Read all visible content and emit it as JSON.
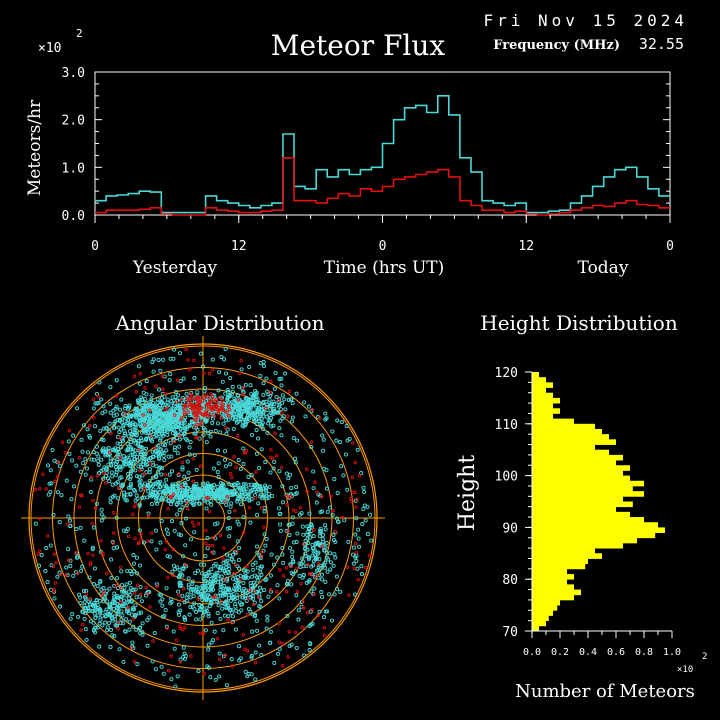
{
  "header": {
    "date": "Fri Nov 15 2024",
    "title": "Meteor Flux",
    "frequency_label": "Frequency (MHz)",
    "frequency_value": "32.55",
    "multiplier": "×10",
    "multiplier_exp": "2"
  },
  "colors": {
    "background": "#000000",
    "cyan_series": "#4ad8d8",
    "red_series": "#e01010",
    "yellow_bars": "#ffff00",
    "rings": "#ff9a00",
    "axes": "#ffffff"
  },
  "chart_data": [
    {
      "type": "line",
      "title": "Meteor Flux",
      "ylabel": "Meteors/hr",
      "xlabel": "Time (hrs UT)",
      "x_group_labels": [
        "Yesterday",
        "Today"
      ],
      "xticks": [
        "0",
        "12",
        "0",
        "12",
        "0"
      ],
      "yticks": [
        "0.0",
        "1.0",
        "2.0",
        "3.0"
      ],
      "ylim": [
        0,
        3.0
      ],
      "y_multiplier": "×10^2",
      "grid": false,
      "series": [
        {
          "color": "cyan",
          "values": [
            0.3,
            0.4,
            0.42,
            0.45,
            0.5,
            0.48,
            0.05,
            0.05,
            0.05,
            0.05,
            0.4,
            0.3,
            0.25,
            0.2,
            0.15,
            0.2,
            0.25,
            1.7,
            0.6,
            0.55,
            0.95,
            0.8,
            0.95,
            0.85,
            0.95,
            1.0,
            1.5,
            2.0,
            2.25,
            2.3,
            2.15,
            2.5,
            2.1,
            1.2,
            0.9,
            0.3,
            0.25,
            0.2,
            0.25,
            0.05,
            0.05,
            0.08,
            0.1,
            0.25,
            0.4,
            0.6,
            0.8,
            0.95,
            1.0,
            0.8,
            0.55,
            0.4
          ]
        },
        {
          "color": "red",
          "values": [
            0.05,
            0.1,
            0.1,
            0.1,
            0.12,
            0.15,
            0.02,
            0.0,
            0.0,
            0.0,
            0.15,
            0.1,
            0.08,
            0.05,
            0.05,
            0.08,
            0.1,
            1.2,
            0.3,
            0.3,
            0.25,
            0.35,
            0.45,
            0.4,
            0.55,
            0.5,
            0.6,
            0.75,
            0.8,
            0.85,
            0.9,
            0.95,
            0.8,
            0.3,
            0.2,
            0.1,
            0.1,
            0.05,
            0.08,
            0.02,
            0.0,
            0.02,
            0.05,
            0.1,
            0.15,
            0.2,
            0.18,
            0.25,
            0.3,
            0.22,
            0.2,
            0.15
          ]
        }
      ]
    },
    {
      "type": "scatter",
      "title": "Angular Distribution",
      "grid": true
    },
    {
      "type": "bar",
      "orientation": "horizontal",
      "title": "Height Distribution",
      "ylabel": "Height",
      "xlabel": "Number of Meteors",
      "x_multiplier": "×10^2",
      "yticks": [
        "70",
        "80",
        "90",
        "100",
        "110",
        "120"
      ],
      "xticks": [
        "0.0",
        "0.2",
        "0.4",
        "0.6",
        "0.8",
        "1.0"
      ],
      "ylim": [
        70,
        120
      ],
      "xlim": [
        0,
        1.0
      ],
      "heights": [
        119.5,
        118.5,
        117.5,
        116.5,
        115.5,
        114.5,
        113.5,
        112.5,
        111.5,
        110.5,
        109.5,
        108.5,
        107.5,
        106.5,
        105.5,
        104.5,
        103.5,
        102.5,
        101.5,
        100.5,
        99.5,
        98.5,
        97.5,
        96.5,
        95.5,
        94.5,
        93.5,
        92.5,
        91.5,
        90.5,
        89.5,
        88.5,
        87.5,
        86.5,
        85.5,
        84.5,
        83.5,
        82.5,
        81.5,
        80.5,
        79.5,
        78.5,
        77.5,
        76.5,
        75.5,
        74.5,
        73.5,
        72.5,
        71.5,
        70.5
      ],
      "values": [
        0.05,
        0.1,
        0.15,
        0.1,
        0.15,
        0.2,
        0.15,
        0.2,
        0.15,
        0.3,
        0.45,
        0.5,
        0.55,
        0.6,
        0.45,
        0.55,
        0.65,
        0.6,
        0.7,
        0.65,
        0.7,
        0.8,
        0.72,
        0.8,
        0.65,
        0.72,
        0.6,
        0.7,
        0.8,
        0.9,
        0.95,
        0.88,
        0.75,
        0.65,
        0.45,
        0.5,
        0.4,
        0.38,
        0.25,
        0.3,
        0.25,
        0.3,
        0.35,
        0.3,
        0.2,
        0.18,
        0.15,
        0.12,
        0.1,
        0.05
      ]
    }
  ],
  "angular": {
    "title": "Angular Distribution"
  },
  "height": {
    "title": "Height Distribution",
    "ylabel": "Height",
    "xlabel": "Number of Meteors",
    "multiplier": "×10",
    "multiplier_exp": "2"
  }
}
